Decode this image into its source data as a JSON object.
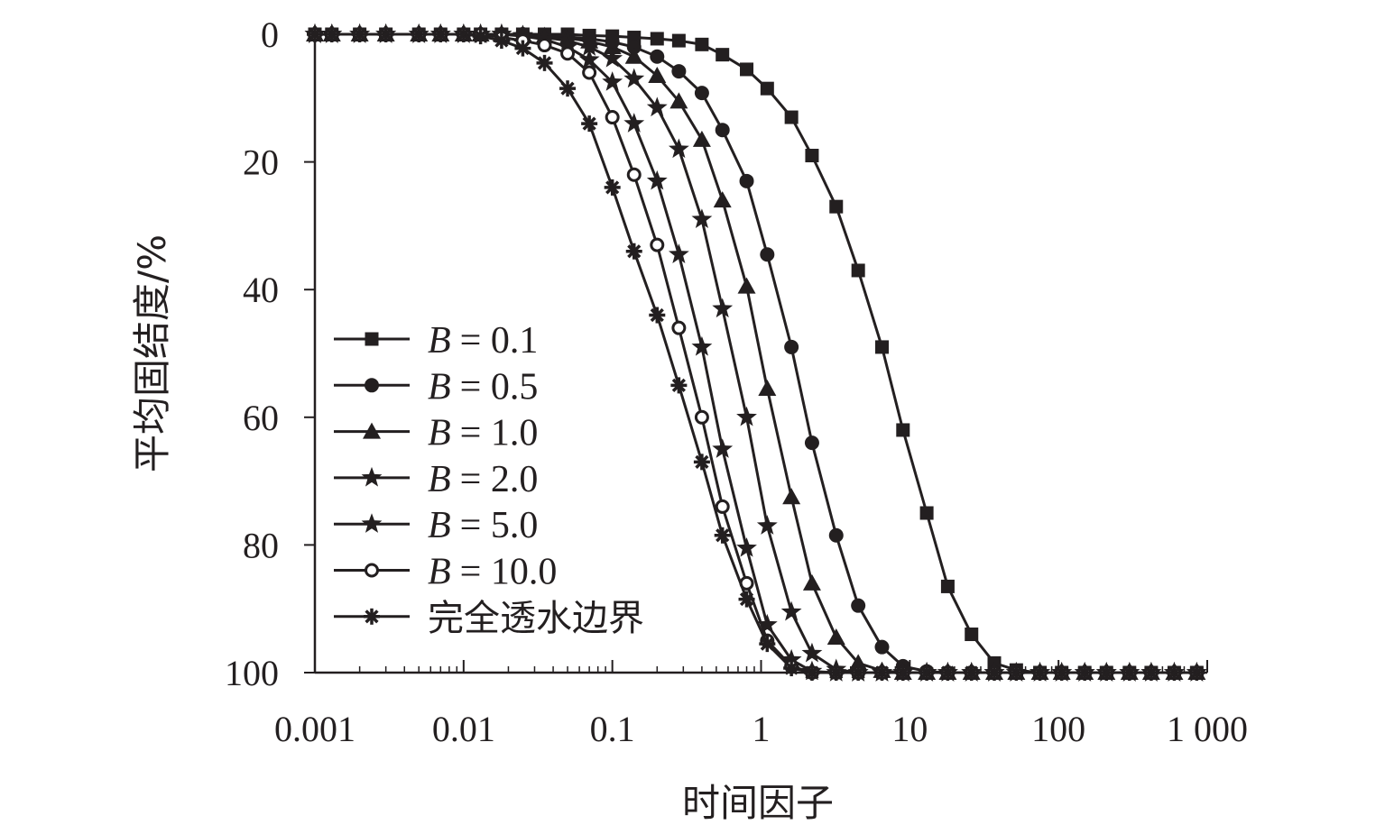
{
  "chart_data": {
    "type": "line",
    "title": "",
    "xlabel": "时间因子",
    "ylabel": "平均固结度/%",
    "x_scale": "log",
    "xlim": [
      0.001,
      1000
    ],
    "ylim": [
      0,
      100
    ],
    "y_inverted": true,
    "x_ticks": [
      "0.001",
      "0.01",
      "0.1",
      "1",
      "10",
      "100",
      "1 000"
    ],
    "y_ticks": [
      "0",
      "20",
      "40",
      "60",
      "80",
      "100"
    ],
    "legend_position": "left",
    "grid": false,
    "line_color": "#231f20",
    "x": [
      0.001,
      0.0013,
      0.002,
      0.003,
      0.005,
      0.007,
      0.01,
      0.013,
      0.018,
      0.025,
      0.035,
      0.05,
      0.07,
      0.1,
      0.14,
      0.2,
      0.28,
      0.4,
      0.55,
      0.8,
      1.1,
      1.6,
      2.2,
      3.2,
      4.5,
      6.5,
      9,
      13,
      18,
      26,
      37,
      52,
      75,
      105,
      150,
      210,
      300,
      420,
      600,
      850
    ],
    "series": [
      {
        "name": "B = 0.1",
        "legend_prefix": "B",
        "legend_value": "= 0.1",
        "marker": "square",
        "values": [
          0,
          0,
          0,
          0,
          0,
          0,
          0,
          0,
          0,
          0,
          0,
          0,
          0.2,
          0.3,
          0.5,
          0.7,
          1.0,
          1.6,
          3.2,
          5.5,
          8.5,
          13,
          19,
          27,
          37,
          49,
          62,
          75,
          86.5,
          94,
          98.5,
          99.6,
          100,
          100,
          100,
          100,
          100,
          100,
          100,
          100
        ]
      },
      {
        "name": "B = 0.5",
        "legend_prefix": "B",
        "legend_value": "= 0.5",
        "marker": "circle",
        "values": [
          0,
          0,
          0,
          0,
          0,
          0,
          0,
          0,
          0,
          0,
          0.2,
          0.4,
          0.7,
          1.2,
          2.0,
          3.5,
          5.8,
          9.2,
          15,
          23,
          34.5,
          49,
          64,
          78.5,
          89.5,
          96,
          99,
          99.8,
          100,
          100,
          100,
          100,
          100,
          100,
          100,
          100,
          100,
          100,
          100,
          100
        ]
      },
      {
        "name": "B = 1.0",
        "legend_prefix": "B",
        "legend_value": "= 1.0",
        "marker": "triangle",
        "values": [
          0,
          0,
          0,
          0,
          0,
          0,
          0,
          0,
          0,
          0,
          0.3,
          0.6,
          1.1,
          2.0,
          3.5,
          6.5,
          10.5,
          16.5,
          26,
          39.5,
          55.5,
          72.5,
          86,
          94.5,
          98.5,
          99.7,
          100,
          100,
          100,
          100,
          100,
          100,
          100,
          100,
          100,
          100,
          100,
          100,
          100,
          100
        ]
      },
      {
        "name": "B = 2.0",
        "legend_prefix": "B",
        "legend_value": "= 2.0",
        "marker": "star",
        "values": [
          0,
          0,
          0,
          0,
          0,
          0,
          0,
          0,
          0,
          0.2,
          0.5,
          1.0,
          2.0,
          3.8,
          7.0,
          11.5,
          18,
          29,
          43,
          60,
          77,
          90.5,
          97,
          99.5,
          100,
          100,
          100,
          100,
          100,
          100,
          100,
          100,
          100,
          100,
          100,
          100,
          100,
          100,
          100,
          100
        ]
      },
      {
        "name": "B = 5.0",
        "legend_prefix": "B",
        "legend_value": "= 5.0",
        "marker": "star",
        "values": [
          0,
          0,
          0,
          0,
          0,
          0,
          0,
          0,
          0,
          0.3,
          0.8,
          2.0,
          4.0,
          7.5,
          14,
          23,
          34.5,
          49,
          65,
          80.5,
          92.5,
          98,
          99.8,
          100,
          100,
          100,
          100,
          100,
          100,
          100,
          100,
          100,
          100,
          100,
          100,
          100,
          100,
          100,
          100,
          100
        ]
      },
      {
        "name": "B = 10.0",
        "legend_prefix": "B",
        "legend_value": "= 10.0",
        "marker": "open-circle",
        "values": [
          0,
          0,
          0,
          0,
          0,
          0,
          0,
          0,
          0.5,
          1.0,
          1.7,
          3.0,
          6.0,
          13,
          22,
          33,
          46,
          60,
          74,
          86,
          95,
          99,
          100,
          100,
          100,
          100,
          100,
          100,
          100,
          100,
          100,
          100,
          100,
          100,
          100,
          100,
          100,
          100,
          100,
          100
        ]
      },
      {
        "name": "完全透水边界",
        "legend_prefix": "",
        "legend_value": "完全透水边界",
        "marker": "asterisk",
        "values": [
          0,
          0,
          0,
          0,
          0,
          0,
          0,
          0.3,
          1.0,
          2.2,
          4.5,
          8.5,
          14,
          24,
          34,
          44,
          55,
          67,
          78.5,
          88.5,
          95.5,
          99.3,
          100,
          100,
          100,
          100,
          100,
          100,
          100,
          100,
          100,
          100,
          100,
          100,
          100,
          100,
          100,
          100,
          100,
          100
        ]
      }
    ]
  }
}
